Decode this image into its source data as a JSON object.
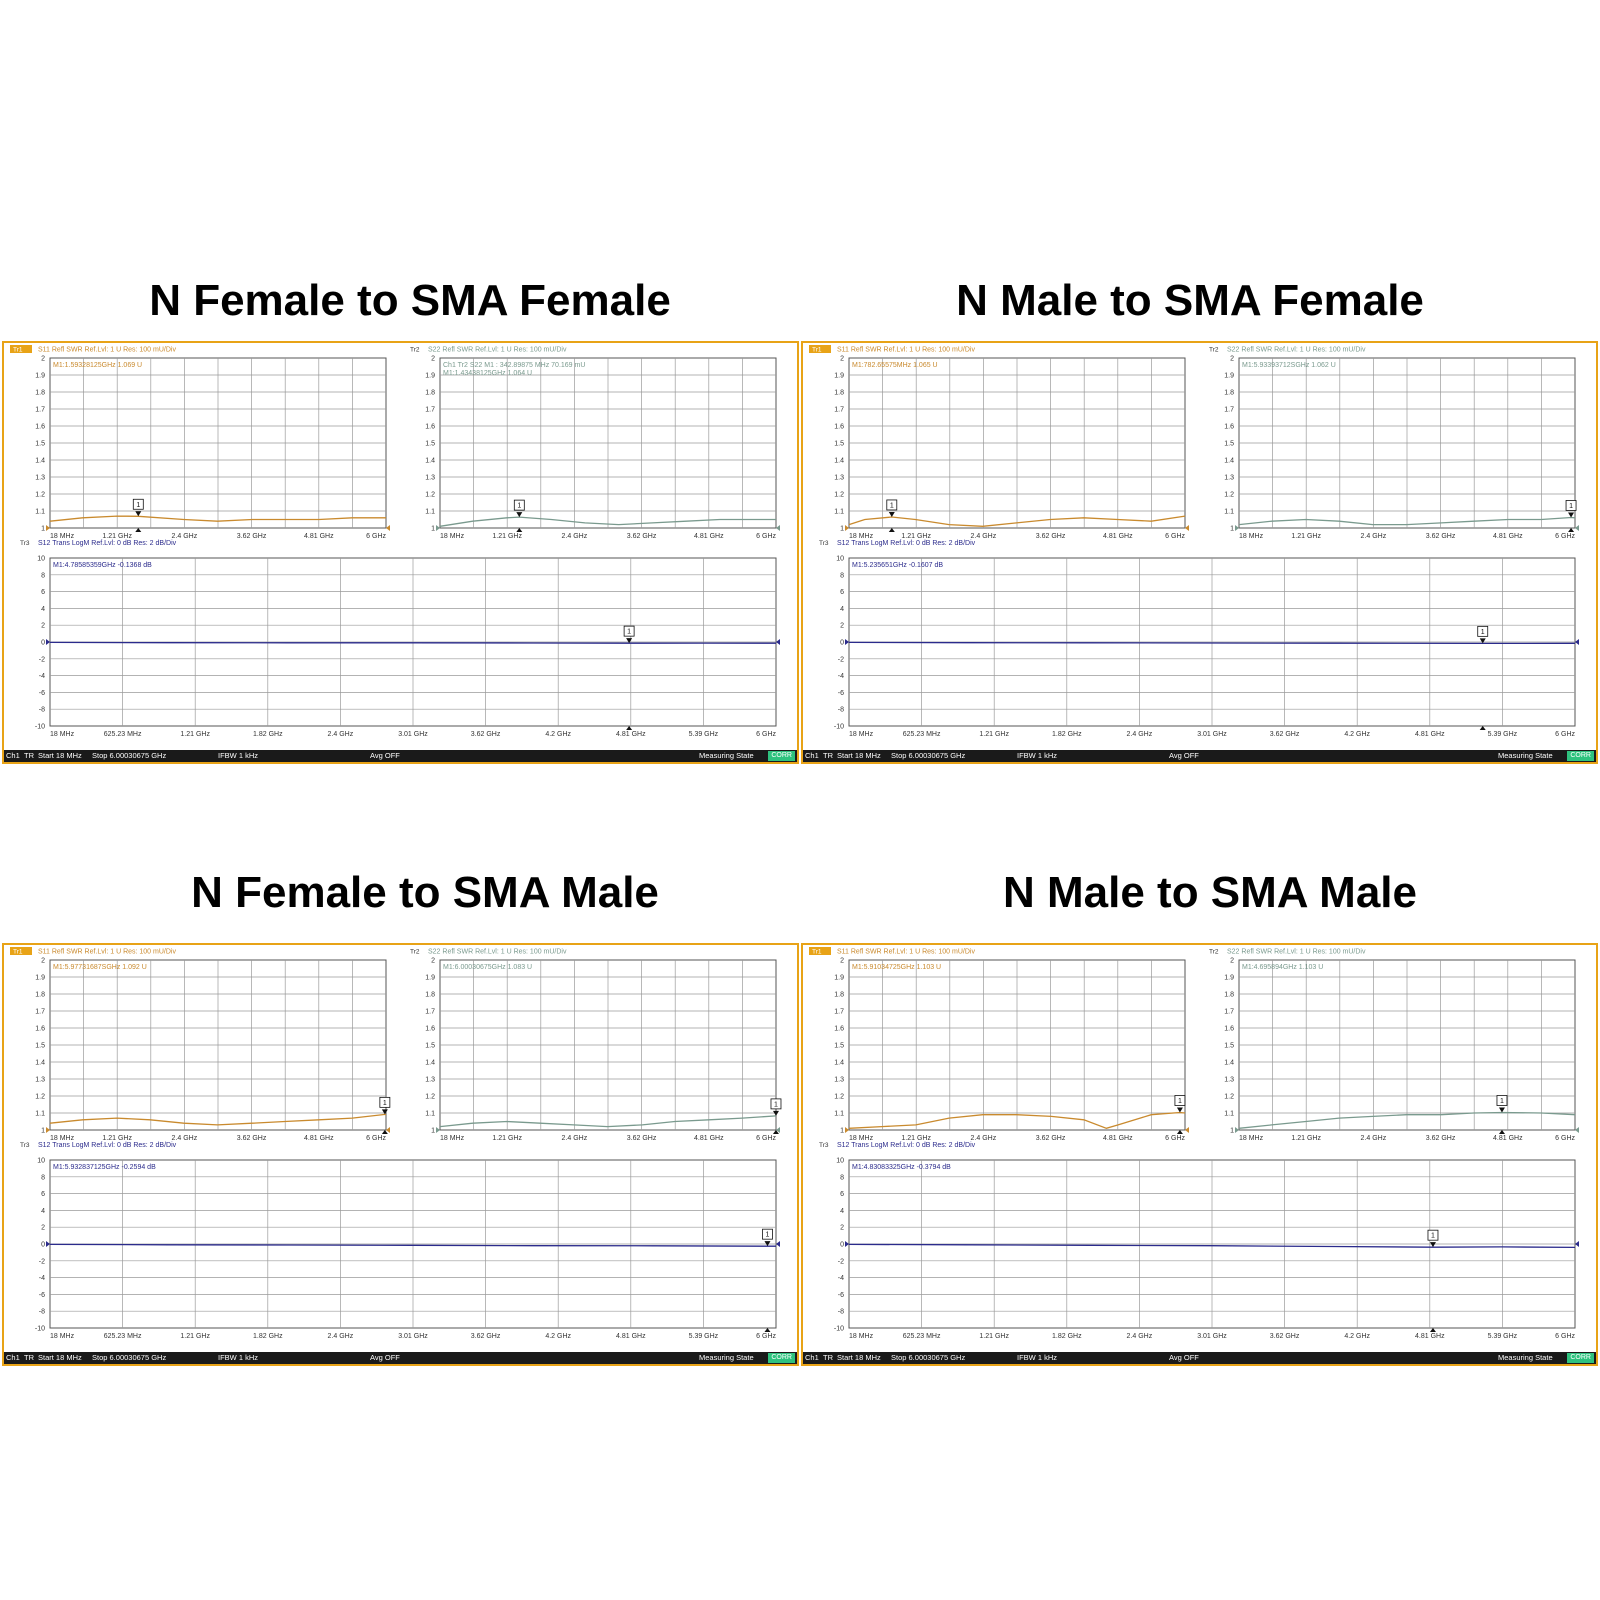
{
  "colors": {
    "border": "#e8a317",
    "s11": "#c98a2e",
    "s22": "#7a9a8e",
    "s12": "#2b2b8c",
    "grid": "#9a9a9a",
    "corr": "#2ec27e"
  },
  "panels": [
    {
      "title": "N Female to SMA Female",
      "tr1_header": "S11 Refl SWR Ref.Lvl: 1  U Res: 100 mU/Div",
      "tr2_header": "S22 Refl SWR Ref.Lvl: 1  U Res: 100 mU/Div",
      "tr3_header": "S12 Trans LogM Ref.Lvl: 0  dB Res: 2  dB/Div",
      "tr1_marker": "M1:1.59328125GHz  1.069  U",
      "tr2_marker": "Ch1 Tr2  S22  M1 :   342.89875 MHz 70.169 mU",
      "tr2_marker2": "M1:1.43438125GHz  1.064  U",
      "tr3_marker": "M1:4.78585359GHz  -0.1368  dB",
      "status": {
        "ch": "Ch1",
        "tr": "TR",
        "start": "Start 18 MHz",
        "stop": "Stop 6.00030675 GHz",
        "ifbw": "IFBW 1 kHz",
        "avg": "Avg OFF",
        "state": "Measuring State",
        "corr": "CORR"
      }
    },
    {
      "title": "N Male to SMA Female",
      "tr1_header": "S11 Refl SWR Ref.Lvl: 1  U Res: 100 mU/Div",
      "tr2_header": "S22 Refl SWR Ref.Lvl: 1  U Res: 100 mU/Div",
      "tr3_header": "S12 Trans LogM Ref.Lvl: 0  dB Res: 2  dB/Div",
      "tr1_marker": "M1:782.65575MHz  1.065  U",
      "tr2_marker": "M1:5.93393712SGHz  1.062  U",
      "tr2_marker2": "",
      "tr3_marker": "M1:5.235651GHz  -0.1607  dB",
      "status": {
        "ch": "Ch1",
        "tr": "TR",
        "start": "Start 18 MHz",
        "stop": "Stop 6.00030675 GHz",
        "ifbw": "IFBW 1 kHz",
        "avg": "Avg OFF",
        "state": "Measuring State",
        "corr": "CORR"
      }
    },
    {
      "title": "N Female to SMA Male",
      "tr1_header": "S11 Refl SWR Ref.Lvl: 1  U Res: 100 mU/Div",
      "tr2_header": "S22 Refl SWR Ref.Lvl: 1  U Res: 100 mU/Div",
      "tr3_header": "S12 Trans LogM Ref.Lvl: 0  dB Res: 2  dB/Div",
      "tr1_marker": "M1:5.97731687SGHz  1.092  U",
      "tr2_marker": "M1:6.00030675GHz  1.083  U",
      "tr2_marker2": "",
      "tr3_marker": "M1:5.932837125GHz  -0.2594  dB",
      "status": {
        "ch": "Ch1",
        "tr": "TR",
        "start": "Start 18 MHz",
        "stop": "Stop 6.00030675 GHz",
        "ifbw": "IFBW 1 kHz",
        "avg": "Avg OFF",
        "state": "Measuring State",
        "corr": "CORR"
      }
    },
    {
      "title": "N Male to SMA Male",
      "tr1_header": "S11 Refl SWR Ref.Lvl: 1  U Res: 100 mU/Div",
      "tr2_header": "S22 Refl SWR Ref.Lvl: 1  U Res: 100 mU/Div",
      "tr3_header": "S12 Trans LogM Ref.Lvl: 0  dB Res: 2  dB/Div",
      "tr1_marker": "M1:5.91034725GHz  1.103  U",
      "tr2_marker": "M1:4.695894GHz  1.103  U",
      "tr2_marker2": "",
      "tr3_marker": "M1:4.83083325GHz  -0.3794  dB",
      "status": {
        "ch": "Ch1",
        "tr": "TR",
        "start": "Start 18 MHz",
        "stop": "Stop 6.00030675 GHz",
        "ifbw": "IFBW 1 kHz",
        "avg": "Avg OFF",
        "state": "Measuring State",
        "corr": "CORR"
      }
    }
  ],
  "chart_data": [
    {
      "type": "line",
      "panel": "N Female to SMA Female",
      "charts": [
        {
          "trace": "Tr1",
          "series": [
            {
              "name": "S11",
              "x": [
                0.018,
                0.6,
                1.21,
                1.59,
                2.4,
                3.0,
                3.62,
                4.2,
                4.81,
                5.4,
                6.0
              ],
              "values": [
                1.04,
                1.06,
                1.07,
                1.069,
                1.05,
                1.04,
                1.05,
                1.05,
                1.05,
                1.06,
                1.06
              ]
            }
          ],
          "ylim": [
            1,
            2
          ],
          "yticks": [
            "2",
            "1.9",
            "1.8",
            "1.7",
            "1.6",
            "1.5",
            "1.4",
            "1.3",
            "1.2",
            "1.1",
            "1"
          ],
          "xticks": [
            "18 MHz",
            "1.21 GHz",
            "2.4 GHz",
            "3.62 GHz",
            "4.81 GHz",
            "6 GHz"
          ],
          "marker": {
            "label": "1",
            "x": 1.59,
            "y": 1.069
          }
        },
        {
          "trace": "Tr2",
          "series": [
            {
              "name": "S22",
              "x": [
                0.018,
                0.6,
                1.21,
                1.43,
                2.0,
                2.6,
                3.2,
                3.8,
                4.4,
                5.0,
                6.0
              ],
              "values": [
                1.01,
                1.04,
                1.06,
                1.064,
                1.05,
                1.03,
                1.02,
                1.03,
                1.04,
                1.05,
                1.05
              ]
            }
          ],
          "ylim": [
            1,
            2
          ],
          "yticks": [
            "2",
            "1.9",
            "1.8",
            "1.7",
            "1.6",
            "1.5",
            "1.4",
            "1.3",
            "1.2",
            "1.1",
            "1"
          ],
          "xticks": [
            "18 MHz",
            "1.21 GHz",
            "2.4 GHz",
            "3.62 GHz",
            "4.81 GHz",
            "6 GHz"
          ],
          "marker": {
            "label": "1",
            "x": 1.43,
            "y": 1.064
          }
        },
        {
          "trace": "Tr3",
          "series": [
            {
              "name": "S12",
              "x": [
                0.018,
                1.0,
                2.0,
                3.0,
                4.0,
                4.79,
                5.4,
                6.0
              ],
              "values": [
                -0.05,
                -0.08,
                -0.1,
                -0.1,
                -0.12,
                -0.137,
                -0.13,
                -0.14
              ]
            }
          ],
          "ylim": [
            -10,
            10
          ],
          "yticks": [
            "10",
            "8",
            "6",
            "4",
            "2",
            "0",
            "-2",
            "-4",
            "-6",
            "-8",
            "-10"
          ],
          "xticks": [
            "18 MHz",
            "625.23 MHz",
            "1.21 GHz",
            "1.82 GHz",
            "2.4 GHz",
            "3.01 GHz",
            "3.62 GHz",
            "4.2 GHz",
            "4.81 GHz",
            "5.39 GHz",
            "6 GHz"
          ],
          "marker": {
            "label": "1",
            "x": 4.79,
            "y": -0.137
          }
        }
      ]
    },
    {
      "type": "line",
      "panel": "N Male to SMA Female",
      "charts": [
        {
          "trace": "Tr1",
          "series": [
            {
              "name": "S11",
              "x": [
                0.018,
                0.3,
                0.78,
                1.2,
                1.8,
                2.4,
                3.0,
                3.6,
                4.2,
                4.8,
                5.4,
                6.0
              ],
              "values": [
                1.02,
                1.05,
                1.065,
                1.05,
                1.02,
                1.01,
                1.03,
                1.05,
                1.06,
                1.05,
                1.04,
                1.07
              ]
            }
          ],
          "ylim": [
            1,
            2
          ],
          "yticks": [
            "2",
            "1.9",
            "1.8",
            "1.7",
            "1.6",
            "1.5",
            "1.4",
            "1.3",
            "1.2",
            "1.1",
            "1"
          ],
          "xticks": [
            "18 MHz",
            "1.21 GHz",
            "2.4 GHz",
            "3.62 GHz",
            "4.81 GHz",
            "6 GHz"
          ],
          "marker": {
            "label": "1",
            "x": 0.78,
            "y": 1.065
          }
        },
        {
          "trace": "Tr2",
          "series": [
            {
              "name": "S22",
              "x": [
                0.018,
                0.6,
                1.21,
                1.8,
                2.4,
                3.0,
                3.62,
                4.2,
                4.81,
                5.4,
                5.93,
                6.0
              ],
              "values": [
                1.02,
                1.04,
                1.05,
                1.04,
                1.02,
                1.02,
                1.03,
                1.04,
                1.05,
                1.05,
                1.062,
                1.06
              ]
            }
          ],
          "ylim": [
            1,
            2
          ],
          "yticks": [
            "2",
            "1.9",
            "1.8",
            "1.7",
            "1.6",
            "1.5",
            "1.4",
            "1.3",
            "1.2",
            "1.1",
            "1"
          ],
          "xticks": [
            "18 MHz",
            "1.21 GHz",
            "2.4 GHz",
            "3.62 GHz",
            "4.81 GHz",
            "6 GHz"
          ],
          "marker": {
            "label": "1",
            "x": 5.93,
            "y": 1.062
          }
        },
        {
          "trace": "Tr3",
          "series": [
            {
              "name": "S12",
              "x": [
                0.018,
                1.0,
                2.0,
                3.0,
                4.0,
                5.24,
                6.0
              ],
              "values": [
                -0.05,
                -0.08,
                -0.1,
                -0.12,
                -0.14,
                -0.161,
                -0.16
              ]
            }
          ],
          "ylim": [
            -10,
            10
          ],
          "yticks": [
            "10",
            "8",
            "6",
            "4",
            "2",
            "0",
            "-2",
            "-4",
            "-6",
            "-8",
            "-10"
          ],
          "xticks": [
            "18 MHz",
            "625.23 MHz",
            "1.21 GHz",
            "1.82 GHz",
            "2.4 GHz",
            "3.01 GHz",
            "3.62 GHz",
            "4.2 GHz",
            "4.81 GHz",
            "5.39 GHz",
            "6 GHz"
          ],
          "marker": {
            "label": "1",
            "x": 5.24,
            "y": -0.161
          }
        }
      ]
    },
    {
      "type": "line",
      "panel": "N Female to SMA Male",
      "charts": [
        {
          "trace": "Tr1",
          "series": [
            {
              "name": "S11",
              "x": [
                0.018,
                0.6,
                1.21,
                1.8,
                2.4,
                3.0,
                3.62,
                4.2,
                4.81,
                5.4,
                5.98,
                6.0
              ],
              "values": [
                1.04,
                1.06,
                1.07,
                1.06,
                1.04,
                1.03,
                1.04,
                1.05,
                1.06,
                1.07,
                1.092,
                1.09
              ]
            }
          ],
          "ylim": [
            1,
            2
          ],
          "yticks": [
            "2",
            "1.9",
            "1.8",
            "1.7",
            "1.6",
            "1.5",
            "1.4",
            "1.3",
            "1.2",
            "1.1",
            "1"
          ],
          "xticks": [
            "18 MHz",
            "1.21 GHz",
            "2.4 GHz",
            "3.62 GHz",
            "4.81 GHz",
            "6 GHz"
          ],
          "marker": {
            "label": "1",
            "x": 5.98,
            "y": 1.092
          }
        },
        {
          "trace": "Tr2",
          "series": [
            {
              "name": "S22",
              "x": [
                0.018,
                0.6,
                1.21,
                1.8,
                2.4,
                3.0,
                3.62,
                4.2,
                4.81,
                5.4,
                6.0
              ],
              "values": [
                1.02,
                1.04,
                1.05,
                1.04,
                1.03,
                1.02,
                1.03,
                1.05,
                1.06,
                1.07,
                1.083
              ]
            }
          ],
          "ylim": [
            1,
            2
          ],
          "yticks": [
            "2",
            "1.9",
            "1.8",
            "1.7",
            "1.6",
            "1.5",
            "1.4",
            "1.3",
            "1.2",
            "1.1",
            "1"
          ],
          "xticks": [
            "18 MHz",
            "1.21 GHz",
            "2.4 GHz",
            "3.62 GHz",
            "4.81 GHz",
            "6 GHz"
          ],
          "marker": {
            "label": "1",
            "x": 6.0,
            "y": 1.083
          }
        },
        {
          "trace": "Tr3",
          "series": [
            {
              "name": "S12",
              "x": [
                0.018,
                1.0,
                2.0,
                3.0,
                4.0,
                5.0,
                5.93,
                6.0
              ],
              "values": [
                -0.05,
                -0.1,
                -0.12,
                -0.15,
                -0.2,
                -0.22,
                -0.259,
                -0.26
              ]
            }
          ],
          "ylim": [
            -10,
            10
          ],
          "yticks": [
            "10",
            "8",
            "6",
            "4",
            "2",
            "0",
            "-2",
            "-4",
            "-6",
            "-8",
            "-10"
          ],
          "xticks": [
            "18 MHz",
            "625.23 MHz",
            "1.21 GHz",
            "1.82 GHz",
            "2.4 GHz",
            "3.01 GHz",
            "3.62 GHz",
            "4.2 GHz",
            "4.81 GHz",
            "5.39 GHz",
            "6 GHz"
          ],
          "marker": {
            "label": "1",
            "x": 5.93,
            "y": -0.259
          }
        }
      ]
    },
    {
      "type": "line",
      "panel": "N Male to SMA Male",
      "charts": [
        {
          "trace": "Tr1",
          "series": [
            {
              "name": "S11",
              "x": [
                0.018,
                0.6,
                1.21,
                1.8,
                2.4,
                3.0,
                3.62,
                4.2,
                4.6,
                4.81,
                5.4,
                5.91,
                6.0
              ],
              "values": [
                1.01,
                1.02,
                1.03,
                1.07,
                1.09,
                1.09,
                1.08,
                1.06,
                1.01,
                1.03,
                1.09,
                1.103,
                1.1
              ]
            }
          ],
          "ylim": [
            1,
            2
          ],
          "yticks": [
            "2",
            "1.9",
            "1.8",
            "1.7",
            "1.6",
            "1.5",
            "1.4",
            "1.3",
            "1.2",
            "1.1",
            "1"
          ],
          "xticks": [
            "18 MHz",
            "1.21 GHz",
            "2.4 GHz",
            "3.62 GHz",
            "4.81 GHz",
            "6 GHz"
          ],
          "marker": {
            "label": "1",
            "x": 5.91,
            "y": 1.103
          }
        },
        {
          "trace": "Tr2",
          "series": [
            {
              "name": "S22",
              "x": [
                0.018,
                0.6,
                1.21,
                1.8,
                2.4,
                3.0,
                3.62,
                4.2,
                4.7,
                5.4,
                6.0
              ],
              "values": [
                1.01,
                1.03,
                1.05,
                1.07,
                1.08,
                1.09,
                1.09,
                1.1,
                1.103,
                1.1,
                1.09
              ]
            }
          ],
          "ylim": [
            1,
            2
          ],
          "yticks": [
            "2",
            "1.9",
            "1.8",
            "1.7",
            "1.6",
            "1.5",
            "1.4",
            "1.3",
            "1.2",
            "1.1",
            "1"
          ],
          "xticks": [
            "18 MHz",
            "1.21 GHz",
            "2.4 GHz",
            "3.62 GHz",
            "4.81 GHz",
            "6 GHz"
          ],
          "marker": {
            "label": "1",
            "x": 4.7,
            "y": 1.103
          }
        },
        {
          "trace": "Tr3",
          "series": [
            {
              "name": "S12",
              "x": [
                0.018,
                1.0,
                2.0,
                3.0,
                4.0,
                4.83,
                5.4,
                6.0
              ],
              "values": [
                -0.05,
                -0.1,
                -0.15,
                -0.2,
                -0.3,
                -0.379,
                -0.35,
                -0.4
              ]
            }
          ],
          "ylim": [
            -10,
            10
          ],
          "yticks": [
            "10",
            "8",
            "6",
            "4",
            "2",
            "0",
            "-2",
            "-4",
            "-6",
            "-8",
            "-10"
          ],
          "xticks": [
            "18 MHz",
            "625.23 MHz",
            "1.21 GHz",
            "1.82 GHz",
            "2.4 GHz",
            "3.01 GHz",
            "3.62 GHz",
            "4.2 GHz",
            "4.81 GHz",
            "5.39 GHz",
            "6 GHz"
          ],
          "marker": {
            "label": "1",
            "x": 4.83,
            "y": -0.379
          }
        }
      ]
    }
  ]
}
